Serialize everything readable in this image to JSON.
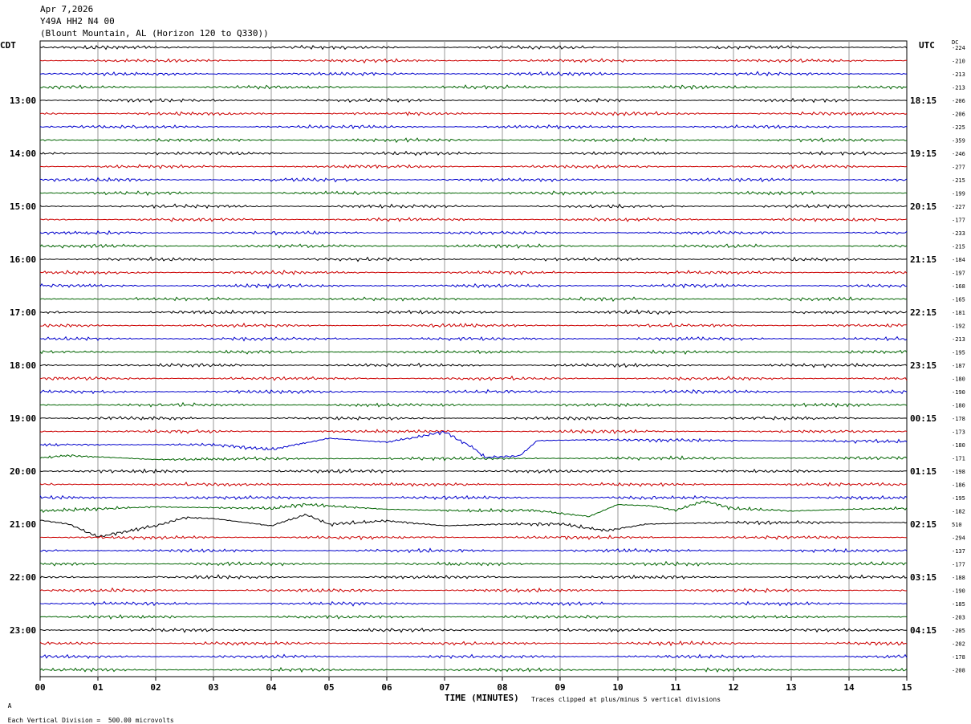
{
  "header": {
    "date": "Apr 7,2026",
    "station": "Y49A HH2 N4 00",
    "location": "(Blount Mountain, AL (Horizon 120 to Q330))"
  },
  "left_tz": "CDT",
  "right_tz": "UTC",
  "dc_label": "DC",
  "footer": {
    "scale": "Each Vertical Division =  500.00 microvolts",
    "xlabel": "TIME (MINUTES)",
    "clip": "Traces clipped at plus/minus 5 vertical divisions",
    "corner_mark": "A"
  },
  "colors": {
    "trace_cycle": [
      "#000000",
      "#cc0000",
      "#0000cc",
      "#006400"
    ],
    "grid": "#999999"
  },
  "chart_data": {
    "type": "line",
    "title": "",
    "xlabel": "TIME (MINUTES)",
    "xlim": [
      0,
      15
    ],
    "x_ticks": [
      "00",
      "01",
      "02",
      "03",
      "04",
      "05",
      "06",
      "07",
      "08",
      "09",
      "10",
      "11",
      "12",
      "13",
      "14",
      "15"
    ],
    "traces_per_hour": 4,
    "left_hour_labels": [
      "13:00",
      "14:00",
      "15:00",
      "16:00",
      "17:00",
      "18:00",
      "19:00",
      "20:00",
      "21:00",
      "22:00",
      "23:00"
    ],
    "right_hour_labels": [
      "18:15",
      "19:15",
      "20:15",
      "21:15",
      "22:15",
      "23:15",
      "00:15",
      "01:15",
      "02:15",
      "03:15",
      "04:15"
    ],
    "dc_offsets": [
      "-224",
      "-210",
      "-213",
      "-213",
      "-206",
      "-206",
      "-225",
      "-359",
      "-246",
      "-277",
      "-215",
      "-199",
      "-227",
      "-177",
      "-233",
      "-215",
      "-184",
      "-197",
      "-168",
      "-165",
      "-181",
      "-192",
      "-213",
      "-195",
      "-187",
      "-180",
      "-190",
      "-180",
      "-178",
      "-173",
      "-180",
      "-171",
      "-198",
      "-186",
      "-195",
      "-182",
      "510",
      "-294",
      "-137",
      "-177",
      "-188",
      "-190",
      "-185",
      "-203",
      "-205",
      "-202",
      "-178",
      "-208"
    ],
    "events": [
      {
        "trace": 30,
        "shape": [
          [
            0,
            0
          ],
          [
            3,
            0
          ],
          [
            4,
            -0.6
          ],
          [
            5,
            0.8
          ],
          [
            6,
            0.3
          ],
          [
            7,
            1.6
          ],
          [
            7.5,
            -0.4
          ],
          [
            7.7,
            -1.6
          ],
          [
            8.3,
            -1.4
          ],
          [
            8.6,
            0.5
          ],
          [
            9.5,
            0.6
          ],
          [
            15,
            0.4
          ]
        ]
      },
      {
        "trace": 31,
        "shape": [
          [
            0,
            0
          ],
          [
            0.5,
            0.3
          ],
          [
            2,
            -0.2
          ],
          [
            4,
            -0.1
          ],
          [
            15,
            0
          ]
        ]
      },
      {
        "trace": 35,
        "shape": [
          [
            0,
            0
          ],
          [
            2,
            0.5
          ],
          [
            4,
            0.3
          ],
          [
            4.6,
            0.8
          ],
          [
            6,
            0.2
          ],
          [
            7.5,
            0
          ],
          [
            8.5,
            0.1
          ],
          [
            9.5,
            -0.7
          ],
          [
            10,
            0.8
          ],
          [
            10.6,
            0.6
          ],
          [
            11,
            0.1
          ],
          [
            11.5,
            1.2
          ],
          [
            12,
            0.3
          ],
          [
            13,
            0
          ],
          [
            14,
            0.2
          ],
          [
            15,
            0.3
          ]
        ]
      },
      {
        "trace": 36,
        "shape": [
          [
            0,
            0.5
          ],
          [
            0.5,
            0
          ],
          [
            1,
            -1.6
          ],
          [
            2,
            -0.2
          ],
          [
            2.5,
            0.8
          ],
          [
            3,
            0.7
          ],
          [
            4,
            -0.2
          ],
          [
            4.6,
            1.2
          ],
          [
            5,
            0
          ],
          [
            6,
            0.4
          ],
          [
            7,
            -0.2
          ],
          [
            8,
            0
          ],
          [
            9,
            0
          ],
          [
            9.8,
            -0.8
          ],
          [
            10.5,
            0
          ],
          [
            11,
            0.1
          ],
          [
            12,
            0.2
          ],
          [
            15,
            0.2
          ]
        ]
      }
    ]
  }
}
